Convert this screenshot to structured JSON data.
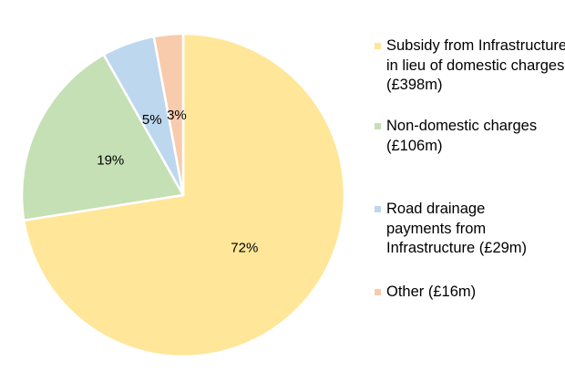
{
  "chart_data": {
    "type": "pie",
    "start_angle": "12 o'clock",
    "direction": "clockwise",
    "slices": [
      {
        "label": "Subsidy from Infrastructure in lieu of domestic charges (£398m)",
        "value": 398,
        "percent_label": "72%",
        "color": "#FFE699"
      },
      {
        "label": "Non-domestic charges (£106m)",
        "value": 106,
        "percent_label": "19%",
        "color": "#C5E0B4"
      },
      {
        "label": "Road drainage payments from Infrastructure (£29m)",
        "value": 29,
        "percent_label": "5%",
        "color": "#BDD7EE"
      },
      {
        "label": "Other (£16m)",
        "value": 16,
        "percent_label": "3%",
        "color": "#F8CBAD"
      }
    ],
    "legend_position": "right"
  }
}
